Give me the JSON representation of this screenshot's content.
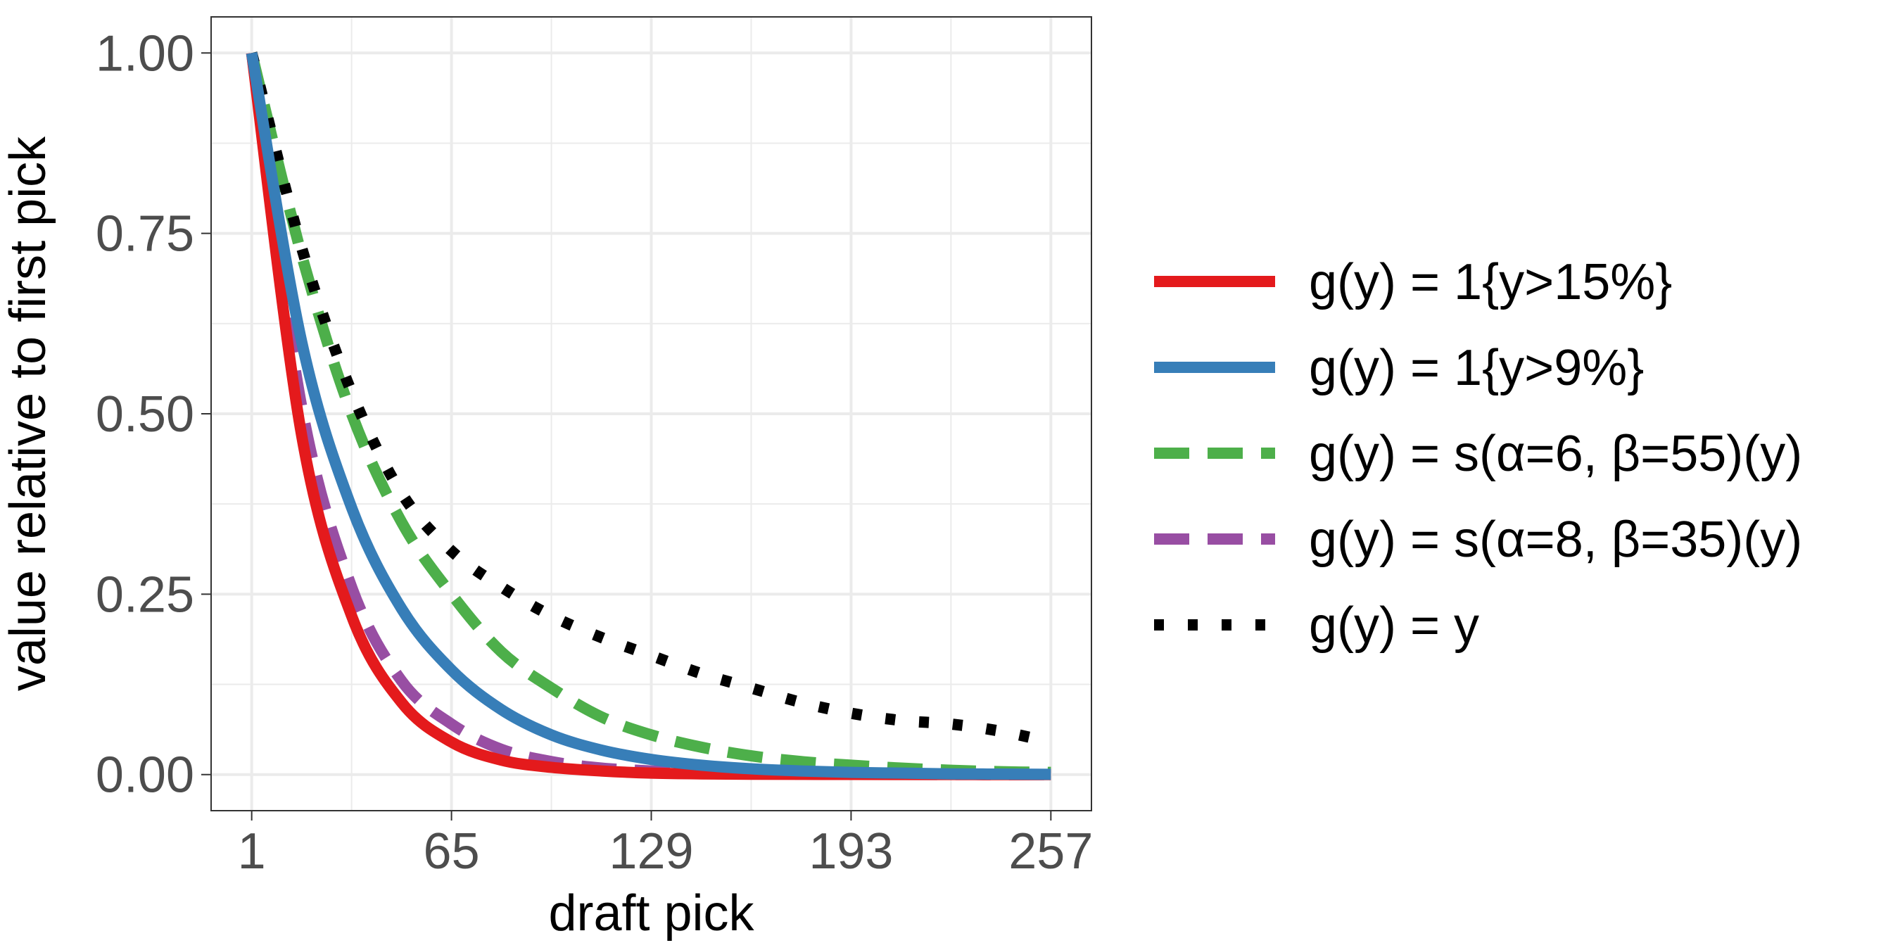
{
  "chart_data": {
    "type": "line",
    "xlabel": "draft pick",
    "ylabel": "value relative to first pick",
    "xlim": [
      -12,
      270
    ],
    "ylim": [
      -0.05,
      1.05
    ],
    "x_ticks": [
      1,
      65,
      129,
      193,
      257
    ],
    "x_tick_labels": [
      "1",
      "65",
      "129",
      "193",
      "257"
    ],
    "y_ticks": [
      0,
      0.25,
      0.5,
      0.75,
      1
    ],
    "y_tick_labels": [
      "0.00",
      "0.25",
      "0.50",
      "0.75",
      "1.00"
    ],
    "grid": true,
    "legend_position": "right",
    "x": [
      1,
      17,
      33,
      49,
      65,
      81,
      97,
      113,
      129,
      145,
      161,
      177,
      193,
      209,
      225,
      241,
      257
    ],
    "series": [
      {
        "name": "g(y) = 1{y>15%}",
        "color": "#E41A1C",
        "style": "solid",
        "values": [
          1.0,
          0.47,
          0.22,
          0.1,
          0.045,
          0.02,
          0.01,
          0.005,
          0.002,
          0.001,
          0.0005,
          0.0003,
          0.0002,
          0.0001,
          0.0001,
          0.0,
          0.0
        ]
      },
      {
        "name": "g(y) = 1{y>9%}",
        "color": "#377EB8",
        "style": "solid",
        "values": [
          1.0,
          0.6,
          0.37,
          0.23,
          0.145,
          0.09,
          0.055,
          0.034,
          0.021,
          0.013,
          0.008,
          0.005,
          0.003,
          0.002,
          0.001,
          0.0007,
          0.0004
        ]
      },
      {
        "name": "g(y) = s(α=6, β=55)(y)",
        "color": "#4DAF4A",
        "style": "dashed",
        "values": [
          1.0,
          0.72,
          0.5,
          0.35,
          0.25,
          0.17,
          0.12,
          0.08,
          0.055,
          0.038,
          0.026,
          0.018,
          0.013,
          0.009,
          0.006,
          0.004,
          0.003
        ]
      },
      {
        "name": "g(y) = s(α=8, β=35)(y)",
        "color": "#984EA3",
        "style": "dashed",
        "values": [
          1.0,
          0.51,
          0.26,
          0.13,
          0.07,
          0.035,
          0.018,
          0.009,
          0.005,
          0.002,
          0.001,
          0.0006,
          0.0003,
          0.0002,
          0.0001,
          0.0,
          0.0
        ]
      },
      {
        "name": "g(y) = y",
        "color": "#000000",
        "style": "dotted",
        "values": [
          1.0,
          0.73,
          0.53,
          0.39,
          0.31,
          0.26,
          0.22,
          0.19,
          0.165,
          0.14,
          0.12,
          0.1,
          0.085,
          0.075,
          0.07,
          0.06,
          0.045
        ]
      }
    ]
  }
}
